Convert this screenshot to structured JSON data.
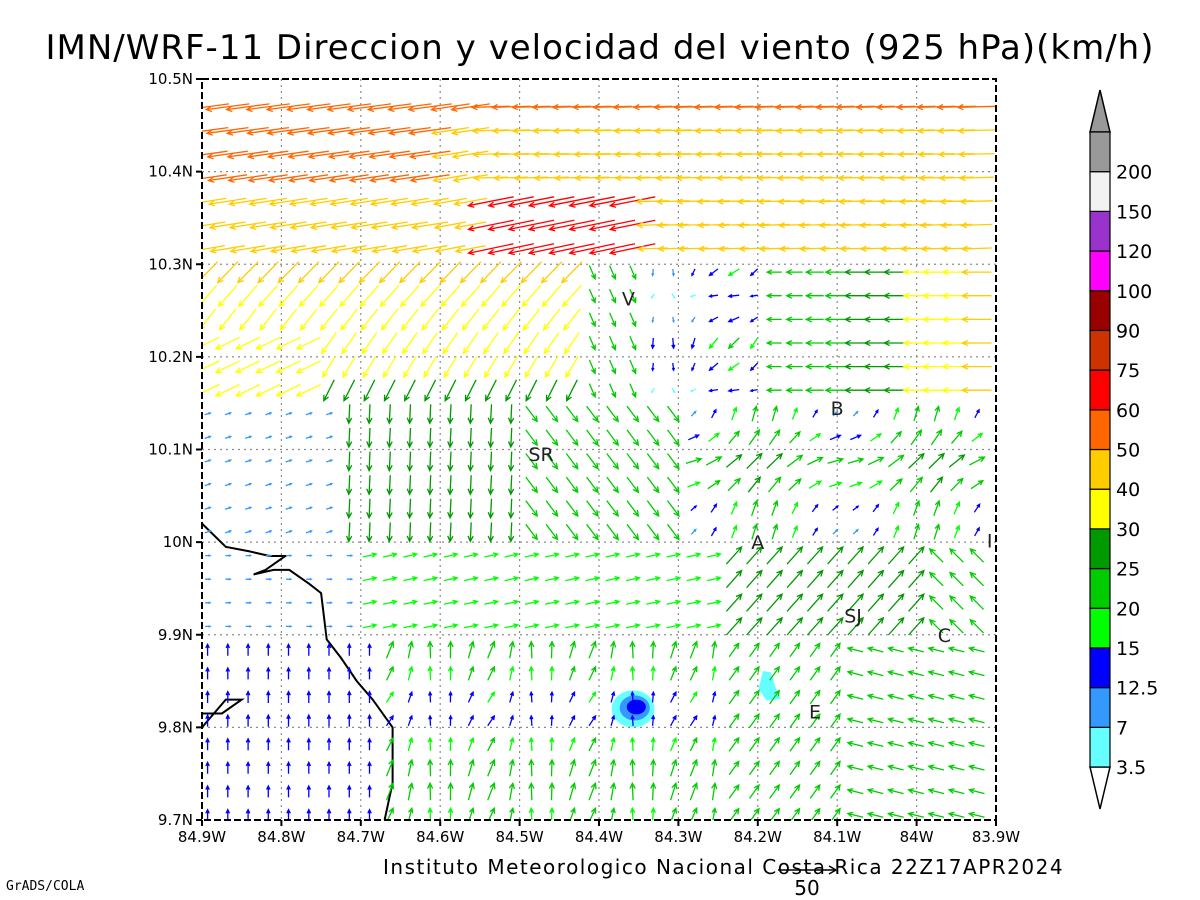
{
  "title": "IMN/WRF-11 Direccion y velocidad del viento (925 hPa)(km/h)",
  "credit": "Instituto Meteorologico Nacional Costa Rica 22Z17APR2024",
  "software": "GrADS/COLA",
  "chart_data": {
    "type": "vector-field",
    "xlim": [
      -84.9,
      -83.9
    ],
    "ylim": [
      9.7,
      10.5
    ],
    "x_ticks": [
      "84.9W",
      "84.8W",
      "84.7W",
      "84.6W",
      "84.5W",
      "84.4W",
      "84.3W",
      "84.2W",
      "84.1W",
      "84W",
      "83.9W"
    ],
    "y_ticks": [
      "9.7N",
      "9.8N",
      "9.9N",
      "10N",
      "10.1N",
      "10.2N",
      "10.3N",
      "10.4N",
      "10.5N"
    ],
    "reference_vector": "50",
    "colorbar_labels": [
      "3.5",
      "7",
      "12.5",
      "15",
      "20",
      "25",
      "30",
      "40",
      "50",
      "60",
      "75",
      "90",
      "100",
      "120",
      "150",
      "200"
    ],
    "colorbar_colors": [
      "#66ffff",
      "#3399ff",
      "#0000ff",
      "#00ff00",
      "#00cc00",
      "#009900",
      "#ffff00",
      "#ffcc00",
      "#ff6600",
      "#ff0000",
      "#cc3300",
      "#990000",
      "#ff00ff",
      "#9933cc",
      "#f2f2f2",
      "#999999"
    ],
    "stations": [
      {
        "label": "V",
        "lon": -84.363,
        "lat": 10.263
      },
      {
        "label": "SR",
        "lon": -84.473,
        "lat": 10.095
      },
      {
        "label": "B",
        "lon": -84.1,
        "lat": 10.145
      },
      {
        "label": "A",
        "lon": -84.2,
        "lat": 10.0
      },
      {
        "label": "I",
        "lon": -83.908,
        "lat": 10.002
      },
      {
        "label": "SJ",
        "lon": -84.08,
        "lat": 9.921
      },
      {
        "label": "C",
        "lon": -83.965,
        "lat": 9.9
      },
      {
        "label": "E",
        "lon": -84.128,
        "lat": 9.817
      }
    ],
    "coastline": [
      [
        [
          -84.9,
          10.02
        ],
        [
          -84.87,
          9.995
        ],
        [
          -84.84,
          9.99
        ],
        [
          -84.815,
          9.985
        ],
        [
          -84.795,
          9.985
        ],
        [
          -84.82,
          9.97
        ],
        [
          -84.835,
          9.965
        ],
        [
          -84.81,
          9.97
        ],
        [
          -84.79,
          9.97
        ],
        [
          -84.765,
          9.955
        ],
        [
          -84.75,
          9.945
        ],
        [
          -84.743,
          9.895
        ],
        [
          -84.725,
          9.875
        ],
        [
          -84.705,
          9.85
        ],
        [
          -84.685,
          9.83
        ],
        [
          -84.66,
          9.8
        ],
        [
          -84.66,
          9.74
        ],
        [
          -84.67,
          9.7
        ]
      ],
      [
        [
          -84.9,
          9.8
        ],
        [
          -84.885,
          9.815
        ],
        [
          -84.87,
          9.83
        ],
        [
          -84.85,
          9.83
        ],
        [
          -84.875,
          9.815
        ],
        [
          -84.9,
          9.815
        ]
      ]
    ],
    "contours": [
      {
        "color": "#66ffff",
        "shape": "ellipse",
        "lon": -84.357,
        "lat": 9.82,
        "rx_deg": 0.027,
        "ry_deg": 0.02
      },
      {
        "color": "#3399ff",
        "shape": "ellipse",
        "lon": -84.355,
        "lat": 9.821,
        "rx_deg": 0.019,
        "ry_deg": 0.0135
      },
      {
        "color": "#0000ff",
        "shape": "ellipse",
        "lon": -84.353,
        "lat": 9.822,
        "rx_deg": 0.012,
        "ry_deg": 0.008
      },
      {
        "color": "#66ffff",
        "shape": "blob",
        "lon": -84.185,
        "lat": 9.845,
        "rx_deg": 0.014,
        "ry_deg": 0.016
      }
    ]
  }
}
